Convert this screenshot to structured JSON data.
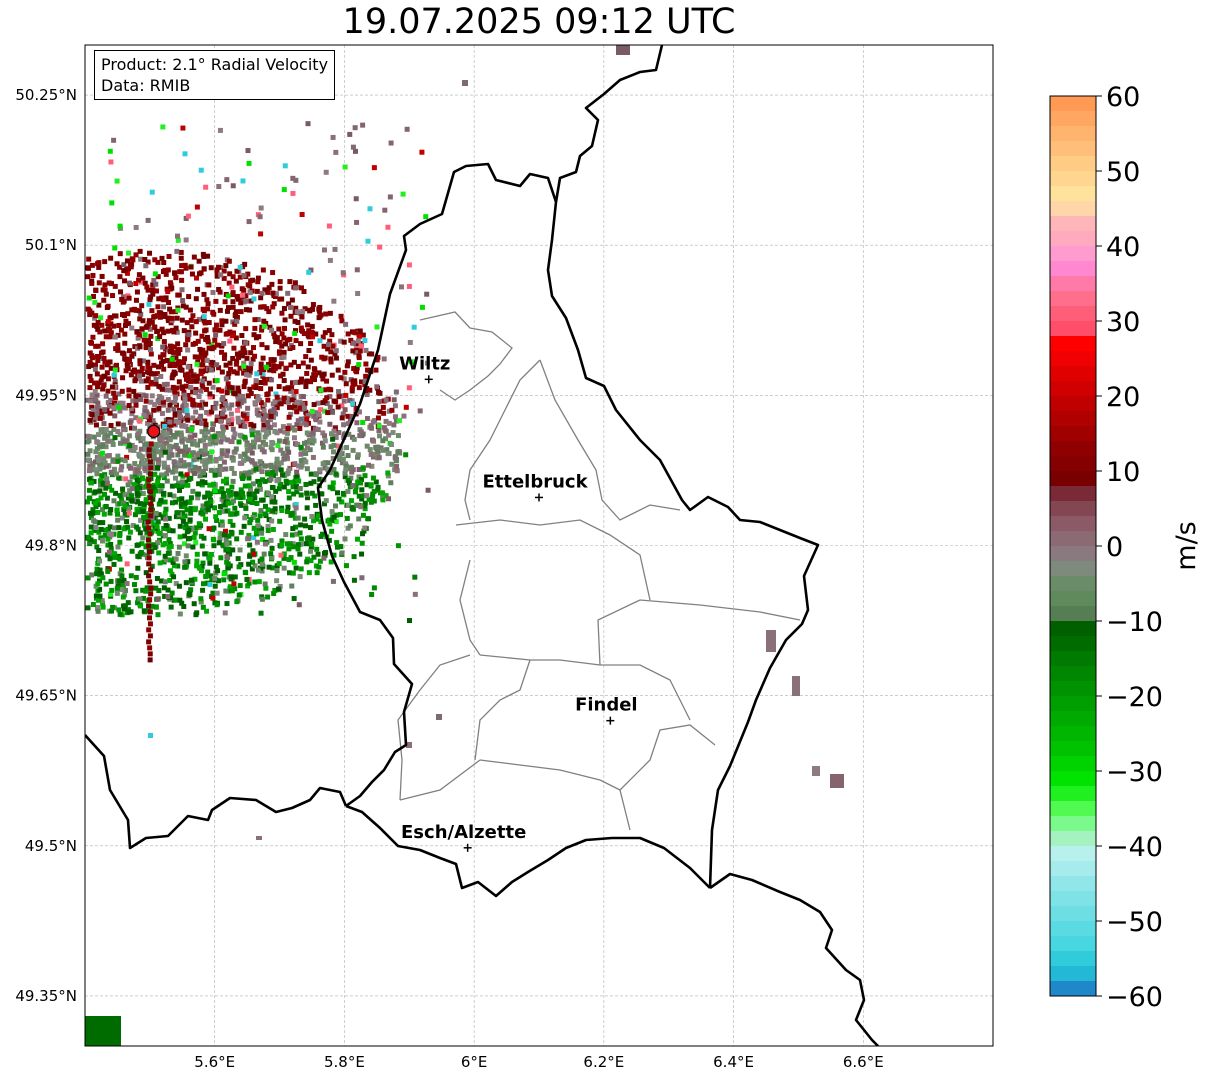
{
  "title": "19.07.2025 09:12 UTC",
  "info": {
    "product": "Product: 2.1° Radial Velocity",
    "source": "Data: RMIB"
  },
  "map": {
    "lon_range": [
      5.4,
      6.8
    ],
    "lat_range": [
      49.3,
      50.3
    ],
    "x_ticks": [
      {
        "value": 5.6,
        "label": "5.6°E"
      },
      {
        "value": 5.8,
        "label": "5.8°E"
      },
      {
        "value": 6.0,
        "label": "6°E"
      },
      {
        "value": 6.2,
        "label": "6.2°E"
      },
      {
        "value": 6.4,
        "label": "6.4°E"
      },
      {
        "value": 6.6,
        "label": "6.6°E"
      }
    ],
    "y_ticks": [
      {
        "value": 50.25,
        "label": "50.25°N"
      },
      {
        "value": 50.1,
        "label": "50.1°N"
      },
      {
        "value": 49.95,
        "label": "49.95°N"
      },
      {
        "value": 49.8,
        "label": "49.8°N"
      },
      {
        "value": 49.65,
        "label": "49.65°N"
      },
      {
        "value": 49.5,
        "label": "49.5°N"
      },
      {
        "value": 49.35,
        "label": "49.35°N"
      }
    ],
    "cities": [
      {
        "name": "Wiltz",
        "lon": 5.93,
        "lat": 49.966
      },
      {
        "name": "Ettelbruck",
        "lon": 6.1,
        "lat": 49.848
      },
      {
        "name": "Findel",
        "lon": 6.21,
        "lat": 49.625
      },
      {
        "name": "Esch/Alzette",
        "lon": 5.99,
        "lat": 49.498
      }
    ],
    "radar_site": {
      "lon": 5.506,
      "lat": 49.914,
      "color": "#e8121a"
    },
    "border_color": "#000000",
    "canton_color": "#808080",
    "grid": true
  },
  "colorbar": {
    "unit": "m/s",
    "min": -60,
    "max": 60,
    "ticks": [
      {
        "value": 60,
        "label": "60"
      },
      {
        "value": 50,
        "label": "50"
      },
      {
        "value": 40,
        "label": "40"
      },
      {
        "value": 30,
        "label": "30"
      },
      {
        "value": 20,
        "label": "20"
      },
      {
        "value": 10,
        "label": "10"
      },
      {
        "value": 0,
        "label": "0"
      },
      {
        "value": -10,
        "label": "−10"
      },
      {
        "value": -20,
        "label": "−20"
      },
      {
        "value": -30,
        "label": "−30"
      },
      {
        "value": -40,
        "label": "−40"
      },
      {
        "value": -50,
        "label": "−50"
      },
      {
        "value": -60,
        "label": "−60"
      }
    ],
    "bands_top_to_bottom": [
      "#ff9a55",
      "#ffa662",
      "#ffb46d",
      "#ffbf7a",
      "#ffcc85",
      "#ffd590",
      "#ffe39c",
      "#ffd6a8",
      "#ffb6b9",
      "#ffaabe",
      "#ff9ccf",
      "#ff88d0",
      "#ff7aa8",
      "#ff6f8c",
      "#ff5e78",
      "#ff4e6a",
      "#ff0000",
      "#f00000",
      "#e00000",
      "#d00000",
      "#c00000",
      "#b00000",
      "#a00000",
      "#900000",
      "#850000",
      "#780000",
      "#7a2a36",
      "#834754",
      "#8b5a66",
      "#8b6a74",
      "#8a7a80",
      "#7d8a7c",
      "#6a8c68",
      "#5e8a5c",
      "#567e54",
      "#006000",
      "#006c00",
      "#007a00",
      "#008600",
      "#009200",
      "#009e00",
      "#00aa00",
      "#00b600",
      "#00c200",
      "#00d200",
      "#00e200",
      "#20f020",
      "#50fa50",
      "#7afa8a",
      "#a4f2c0",
      "#b8f0ee",
      "#a6ecec",
      "#90e6e8",
      "#7ee2e6",
      "#6cdee4",
      "#5adae2",
      "#48d6e0",
      "#30ccdc",
      "#22b8d6",
      "#1e88c8"
    ]
  }
}
